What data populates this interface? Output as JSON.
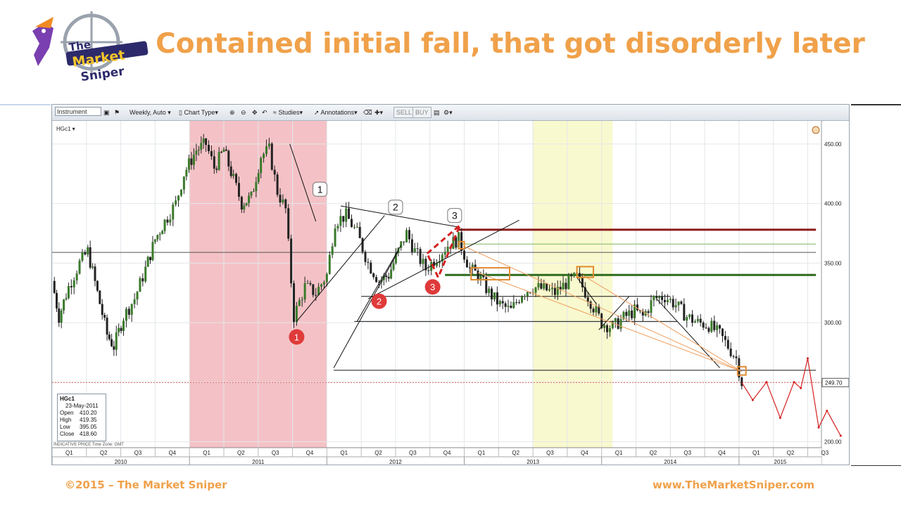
{
  "title": "Contained initial fall, that got disorderly later",
  "footer": {
    "left": "©2015 – The Market Sniper",
    "right": "www.TheMarketSniper.com"
  },
  "logo": {
    "line1": "The",
    "line2": "Market",
    "line3": "Sniper"
  },
  "toolbar": {
    "instrument_placeholder": "Instrument",
    "timeframe": "Weekly, Auto",
    "chart_type": "Chart Type",
    "studies": "Studies",
    "annotations": "Annotations",
    "sell": "SELL",
    "buy": "BUY"
  },
  "symbol_label": "HGc1",
  "info_box": {
    "symbol": "HGc1",
    "date": "23-May-2011",
    "rows": [
      {
        "k": "Open",
        "v": "410.20"
      },
      {
        "k": "High",
        "v": "419.35"
      },
      {
        "k": "Low",
        "v": "395.05"
      },
      {
        "k": "Close",
        "v": "418.60"
      }
    ]
  },
  "indicative_text": "INDICATIVE PRICE   Time Zone: GMT",
  "colors": {
    "title": "#f0a14a",
    "shade_red": "#f4c2c6",
    "shade_yellow": "#f9f9cf",
    "up_candle": "#3a7a2a",
    "resistance": "#8b1a1a",
    "support": "#2e6b1f",
    "marker_red": "#e03a3a",
    "trend_orange": "#f0a060"
  },
  "chart_data": {
    "type": "candlestick",
    "y_ticks": [
      200,
      250,
      300,
      350,
      400,
      450
    ],
    "y_tick_labels": [
      "200.00",
      "250.00",
      "300.00",
      "350.00",
      "400.00",
      "450.00"
    ],
    "ylim": [
      195,
      470
    ],
    "x_range": [
      2010.0,
      2015.6
    ],
    "quarter_labels": [
      "Q1",
      "Q2",
      "Q3",
      "Q4",
      "Q1",
      "Q2",
      "Q3",
      "Q4",
      "Q1",
      "Q2",
      "Q3",
      "Q4",
      "Q1",
      "Q2",
      "Q3",
      "Q4",
      "Q1",
      "Q2",
      "Q3",
      "Q4",
      "Q1",
      "Q2",
      "Q3"
    ],
    "year_labels": [
      "2010",
      "2011",
      "2012",
      "2013",
      "2014",
      "2015"
    ],
    "last_price": 249.7,
    "last_price_label": "249.70",
    "shaded_regions": [
      {
        "from": 2011.0,
        "to": 2012.0,
        "color": "shade_red"
      },
      {
        "from": 2013.5,
        "to": 2014.08,
        "color": "shade_yellow"
      }
    ],
    "price_path": [
      [
        2010.0,
        335
      ],
      [
        2010.05,
        305
      ],
      [
        2010.12,
        330
      ],
      [
        2010.2,
        350
      ],
      [
        2010.26,
        360
      ],
      [
        2010.33,
        325
      ],
      [
        2010.4,
        290
      ],
      [
        2010.45,
        280
      ],
      [
        2010.52,
        305
      ],
      [
        2010.6,
        320
      ],
      [
        2010.68,
        345
      ],
      [
        2010.75,
        370
      ],
      [
        2010.82,
        385
      ],
      [
        2010.9,
        400
      ],
      [
        2010.96,
        425
      ],
      [
        2011.05,
        445
      ],
      [
        2011.12,
        450
      ],
      [
        2011.18,
        430
      ],
      [
        2011.25,
        445
      ],
      [
        2011.32,
        420
      ],
      [
        2011.38,
        400
      ],
      [
        2011.45,
        405
      ],
      [
        2011.52,
        440
      ],
      [
        2011.58,
        445
      ],
      [
        2011.64,
        410
      ],
      [
        2011.7,
        395
      ],
      [
        2011.76,
        305
      ],
      [
        2011.84,
        330
      ],
      [
        2011.92,
        325
      ],
      [
        2012.0,
        340
      ],
      [
        2012.06,
        385
      ],
      [
        2012.14,
        390
      ],
      [
        2012.22,
        375
      ],
      [
        2012.3,
        350
      ],
      [
        2012.38,
        335
      ],
      [
        2012.45,
        340
      ],
      [
        2012.52,
        360
      ],
      [
        2012.58,
        375
      ],
      [
        2012.64,
        360
      ],
      [
        2012.72,
        345
      ],
      [
        2012.8,
        355
      ],
      [
        2012.88,
        365
      ],
      [
        2012.96,
        370
      ],
      [
        2013.04,
        345
      ],
      [
        2013.1,
        340
      ],
      [
        2013.18,
        325
      ],
      [
        2013.26,
        315
      ],
      [
        2013.34,
        310
      ],
      [
        2013.42,
        325
      ],
      [
        2013.5,
        330
      ],
      [
        2013.58,
        328
      ],
      [
        2013.66,
        325
      ],
      [
        2013.74,
        333
      ],
      [
        2013.82,
        338
      ],
      [
        2013.9,
        322
      ],
      [
        2014.0,
        300
      ],
      [
        2014.08,
        296
      ],
      [
        2014.16,
        304
      ],
      [
        2014.24,
        310
      ],
      [
        2014.3,
        305
      ],
      [
        2014.38,
        320
      ],
      [
        2014.46,
        322
      ],
      [
        2014.54,
        315
      ],
      [
        2014.62,
        305
      ],
      [
        2014.7,
        300
      ],
      [
        2014.78,
        298
      ],
      [
        2014.86,
        290
      ],
      [
        2014.92,
        280
      ],
      [
        2014.98,
        270
      ],
      [
        2015.02,
        249.7
      ]
    ],
    "projection_path": [
      [
        2015.02,
        249.7
      ],
      [
        2015.1,
        235
      ],
      [
        2015.2,
        250
      ],
      [
        2015.3,
        220
      ],
      [
        2015.4,
        250
      ],
      [
        2015.45,
        245
      ],
      [
        2015.5,
        270
      ],
      [
        2015.58,
        212
      ],
      [
        2015.64,
        226
      ],
      [
        2015.74,
        205
      ]
    ],
    "horizontal_levels": [
      {
        "price": 378,
        "from": 2012.96,
        "to": 2015.56,
        "style": "resistance"
      },
      {
        "price": 366,
        "from": 2012.96,
        "to": 2015.56,
        "style": "thin-green"
      },
      {
        "price": 359,
        "from": 2010.0,
        "to": 2015.56,
        "style": "gray"
      },
      {
        "price": 340,
        "from": 2012.86,
        "to": 2015.56,
        "style": "support"
      },
      {
        "price": 322,
        "from": 2012.25,
        "to": 2014.5,
        "style": "black"
      },
      {
        "price": 301,
        "from": 2012.2,
        "to": 2014.55,
        "style": "black"
      },
      {
        "price": 260,
        "from": 2012.05,
        "to": 2015.56,
        "style": "black"
      }
    ],
    "trend_lines": [
      [
        [
          2011.73,
          450
        ],
        [
          2011.92,
          385
        ]
      ],
      [
        [
          2011.78,
          301
        ],
        [
          2012.42,
          390
        ]
      ],
      [
        [
          2012.1,
          398
        ],
        [
          2012.97,
          380
        ]
      ],
      [
        [
          2012.3,
          320
        ],
        [
          2013.4,
          386
        ]
      ],
      [
        [
          2012.05,
          262
        ],
        [
          2012.52,
          360
        ]
      ],
      [
        [
          2012.22,
          301
        ],
        [
          2012.54,
          365
        ]
      ],
      [
        [
          2014.4,
          320
        ],
        [
          2014.86,
          262
        ]
      ],
      [
        [
          2013.98,
          294
        ],
        [
          2014.2,
          322
        ]
      ],
      [
        [
          2013.82,
          338
        ],
        [
          2013.96,
          316
        ]
      ]
    ],
    "fan_lines": [
      [
        [
          2013.0,
          364
        ],
        [
          2015.02,
          259
        ]
      ],
      [
        [
          2013.1,
          342
        ],
        [
          2015.02,
          259
        ]
      ],
      [
        [
          2013.86,
          340
        ],
        [
          2015.02,
          259
        ]
      ]
    ],
    "numbered_labels": [
      {
        "text": "1",
        "x": 2011.95,
        "y": 412,
        "kind": "box"
      },
      {
        "text": "2",
        "x": 2012.5,
        "y": 397,
        "kind": "box"
      },
      {
        "text": "3",
        "x": 2012.93,
        "y": 390,
        "kind": "box"
      },
      {
        "text": "1",
        "x": 2011.78,
        "y": 288,
        "kind": "circle"
      },
      {
        "text": "2",
        "x": 2012.38,
        "y": 318,
        "kind": "circle"
      },
      {
        "text": "3",
        "x": 2012.77,
        "y": 330,
        "kind": "circle"
      }
    ],
    "highlight_boxes": [
      {
        "x1": 2013.05,
        "x2": 2013.33,
        "y1": 336,
        "y2": 346
      },
      {
        "x1": 2013.82,
        "x2": 2013.94,
        "y1": 338,
        "y2": 347
      },
      {
        "x1": 2012.96,
        "x2": 2013.0,
        "y1": 362,
        "y2": 368
      },
      {
        "x1": 2014.99,
        "x2": 2015.05,
        "y1": 256,
        "y2": 263
      }
    ]
  }
}
